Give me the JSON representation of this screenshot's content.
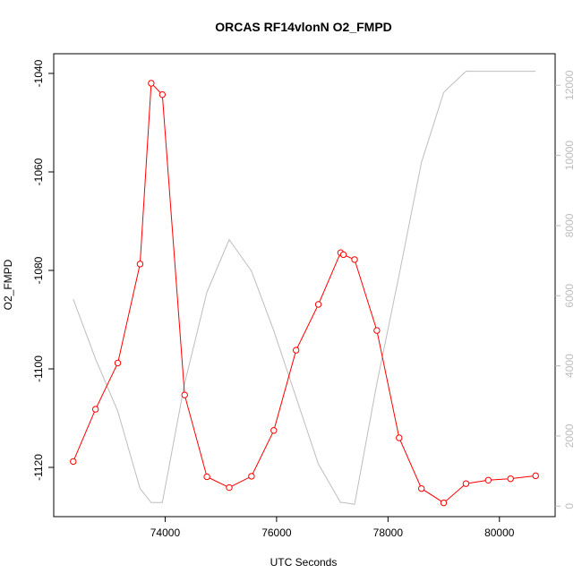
{
  "chart_data": {
    "type": "line",
    "title": "ORCAS RF14vlonN O2_FMPD",
    "xlabel": "UTC Seconds",
    "ylabel": "O2_FMPD",
    "xlim": [
      72000,
      81000
    ],
    "ylim": [
      -1130,
      -1036
    ],
    "y2lim": [
      -300,
      12900
    ],
    "x_ticks": [
      74000,
      76000,
      78000,
      80000
    ],
    "y_ticks": [
      -1120,
      -1100,
      -1080,
      -1060,
      -1040
    ],
    "y2_ticks": [
      0,
      2000,
      4000,
      6000,
      8000,
      10000,
      12000
    ],
    "grid": false,
    "series": [
      {
        "axis": "left",
        "color": "#ff0000",
        "marker": "open-circle",
        "x": [
          72350,
          72750,
          73150,
          73550,
          73750,
          73950,
          74350,
          74750,
          75150,
          75550,
          75950,
          76350,
          76750,
          77150,
          77200,
          77400,
          77800,
          78200,
          78600,
          79000,
          79400,
          79800,
          80200,
          80650
        ],
        "values": [
          -1118.8,
          -1108.2,
          -1098.8,
          -1078.7,
          -1042.0,
          -1044.3,
          -1105.3,
          -1121.9,
          -1124.1,
          -1121.8,
          -1112.5,
          -1096.2,
          -1086.9,
          -1076.4,
          -1076.8,
          -1077.8,
          -1092.2,
          -1114.0,
          -1124.3,
          -1127.2,
          -1123.3,
          -1122.6,
          -1122.3,
          -1121.7
        ]
      },
      {
        "axis": "right",
        "color": "#bdbdbd",
        "marker": "none",
        "x": [
          72350,
          72750,
          73150,
          73550,
          73750,
          73950,
          74350,
          74750,
          75150,
          75550,
          75950,
          76350,
          76750,
          77150,
          77200,
          77400,
          77800,
          78200,
          78600,
          79000,
          79400,
          79800,
          80200,
          80650
        ],
        "values": [
          5900,
          4200,
          2700,
          500,
          100,
          100,
          3500,
          6100,
          7600,
          6700,
          5000,
          3100,
          1200,
          100,
          100,
          50,
          3500,
          6600,
          9800,
          11800,
          12400,
          12400,
          12400,
          12400
        ]
      }
    ]
  }
}
